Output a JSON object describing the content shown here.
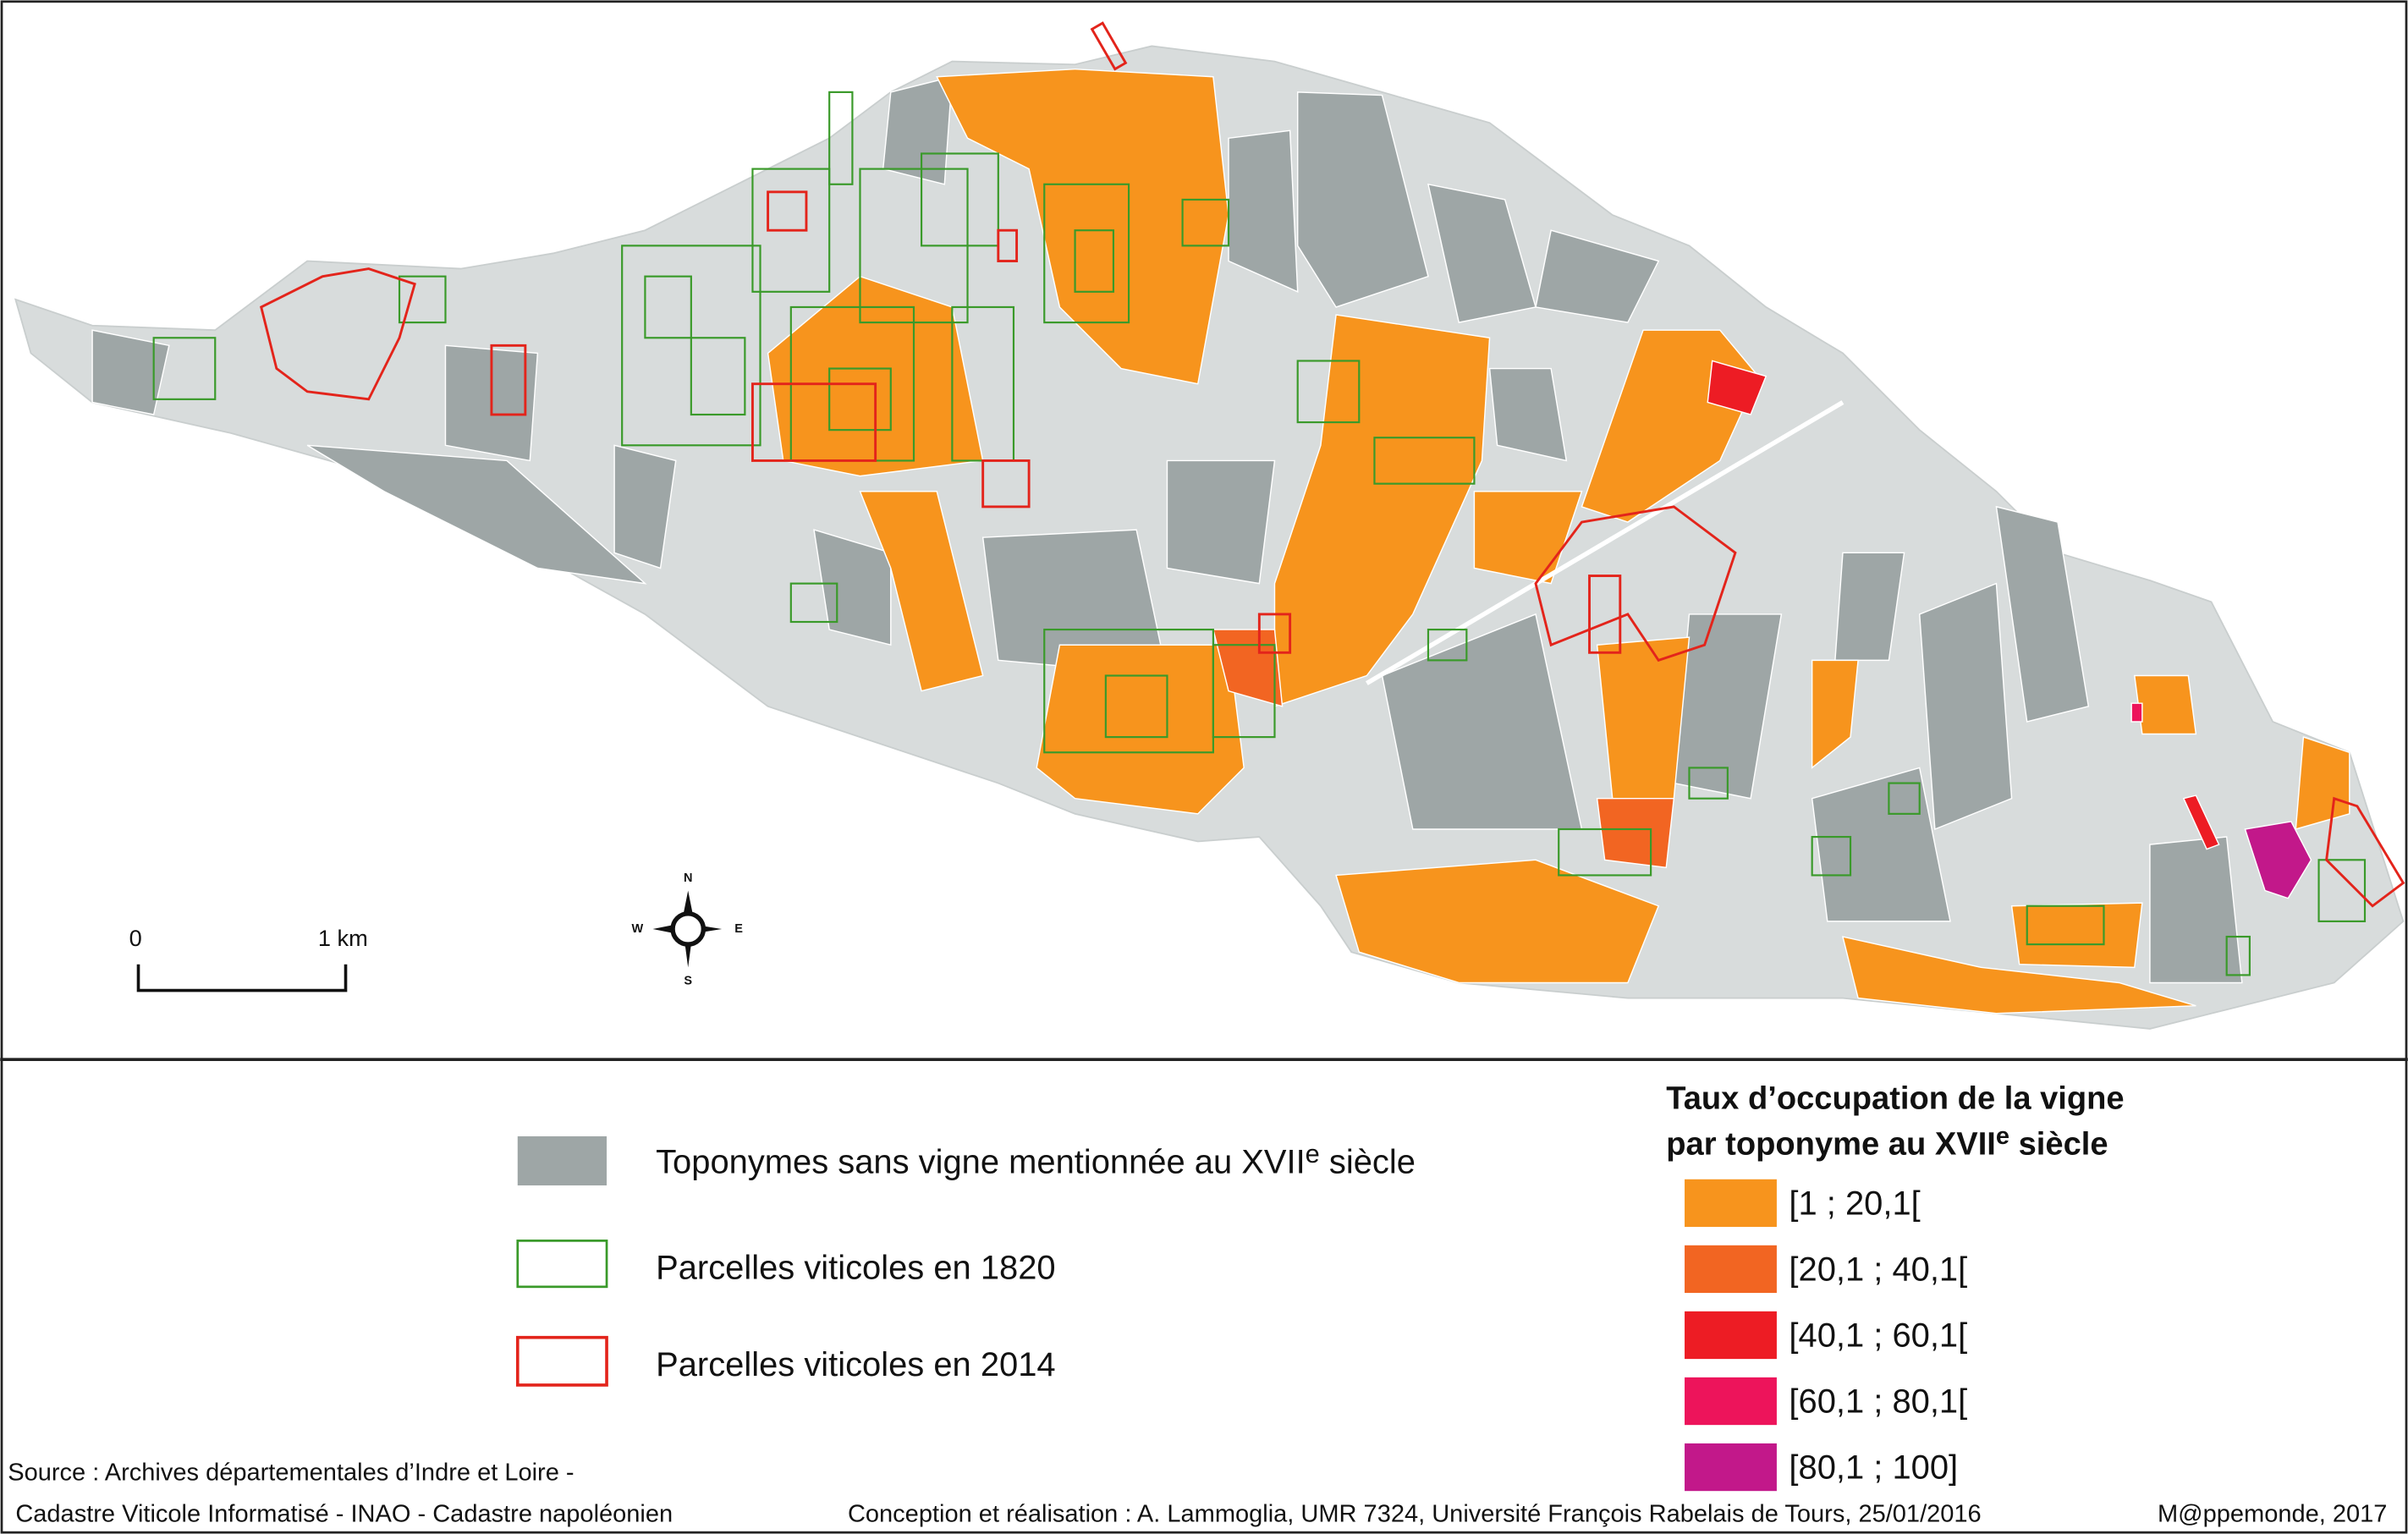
{
  "scale": {
    "start": "0",
    "end": "1 km"
  },
  "compass": {
    "n": "N",
    "s": "S",
    "e": "E",
    "w": "W"
  },
  "legend": {
    "items": [
      {
        "label_before": "Toponymes sans vigne mentionnée au XVII",
        "label_sup": "e",
        "label_after": " siècle",
        "color": "#9ea6a6"
      },
      {
        "label": "Parcelles viticoles en 1820",
        "color": "#3a9a2a"
      },
      {
        "label": "Parcelles viticoles en 2014",
        "color": "#e3241b"
      }
    ],
    "title_line1": "Taux d’occupation de la vigne",
    "title_line2_before": "par toponyme au XVII",
    "title_line2_sup": "e",
    "title_line2_after": " siècle",
    "classes": [
      {
        "label": "[1 ; 20,1[",
        "color": "#f7941d"
      },
      {
        "label": "[20,1 ; 40,1[",
        "color": "#f26522"
      },
      {
        "label": "[40,1 ; 60,1[",
        "color": "#ed1c24"
      },
      {
        "label": "[60,1 ; 80,1[",
        "color": "#ed145b"
      },
      {
        "label": "[80,1 ; 100]",
        "color": "#c2188a"
      }
    ]
  },
  "footer": {
    "source_line1": "Source : Archives départementales d’Indre et Loire -",
    "source_line2": "Cadastre Viticole Informatisé - INAO - Cadastre napoléonien",
    "credits": "Conception et réalisation : A. Lammoglia, UMR 7324, Université François Rabelais de Tours, 25/01/2016",
    "publisher": "M@ppemonde, 2017"
  }
}
